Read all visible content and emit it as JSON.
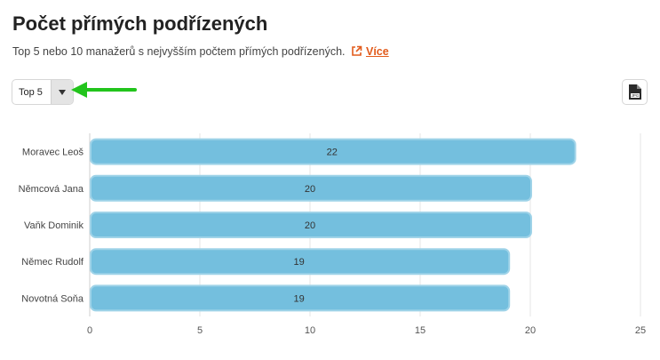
{
  "header": {
    "title": "Počet přímých podřízených",
    "subtitle": "Top 5 nebo 10 manažerů s nejvyšším počtem přímých podřízených.",
    "more_link": "Více",
    "more_icon": "external-link-icon",
    "accent_color": "#e25b1c"
  },
  "controls": {
    "top_select": {
      "value": "Top 5",
      "icon": "chevron-down-icon"
    },
    "export_button": {
      "icon": "jpg-file-icon"
    },
    "annotation_arrow_color": "#22c41c"
  },
  "chart_data": {
    "type": "bar",
    "orientation": "horizontal",
    "categories": [
      "Moravec Leoš",
      "Němcová Jana",
      "Vaňk Dominik",
      "Němec Rudolf",
      "Novotná Soňa"
    ],
    "values": [
      22,
      20,
      20,
      19,
      19
    ],
    "data_labels": [
      "22",
      "20",
      "20",
      "19",
      "19"
    ],
    "xlim": [
      0,
      25
    ],
    "x_ticks": [
      0,
      5,
      10,
      15,
      20,
      25
    ],
    "grid": true,
    "legend": "none",
    "bar_color": "#74bfde",
    "bar_border_color": "#9fd3e8"
  }
}
